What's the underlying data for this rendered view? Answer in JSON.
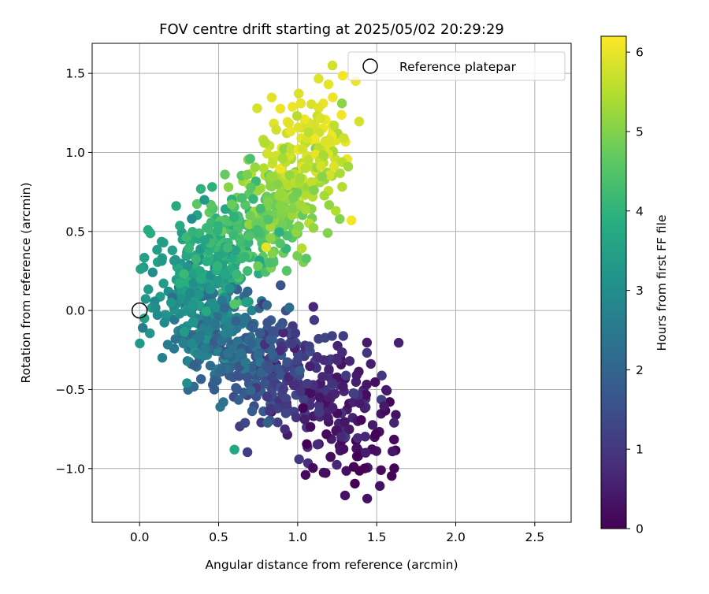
{
  "chart_data": {
    "type": "scatter",
    "title": "FOV centre drift starting at 2025/05/02 20:29:29",
    "xlabel": "Angular distance from reference (arcmin)",
    "ylabel": "Rotation from reference (arcmin)",
    "xlim": [
      -0.3,
      2.73
    ],
    "ylim": [
      -1.34,
      1.69
    ],
    "xticks": [
      0.0,
      0.5,
      1.0,
      1.5,
      2.0,
      2.5
    ],
    "xtick_labels": [
      "0.0",
      "0.5",
      "1.0",
      "1.5",
      "2.0",
      "2.5"
    ],
    "yticks": [
      -1.0,
      -0.5,
      0.0,
      0.5,
      1.0,
      1.5
    ],
    "ytick_labels": [
      "−1.0",
      "−0.5",
      "0.0",
      "0.5",
      "1.0",
      "1.5"
    ],
    "grid": true,
    "legend": {
      "placement": "top-right",
      "entries": [
        "Reference platepar"
      ]
    },
    "colormap": "viridis",
    "colorbar": {
      "label": "Hours from first FF file",
      "range": [
        0,
        6.2
      ],
      "ticks": [
        0,
        1,
        2,
        3,
        4,
        5,
        6
      ],
      "tick_labels": [
        "0",
        "1",
        "2",
        "3",
        "4",
        "5",
        "6"
      ]
    },
    "reference_point": {
      "x": 0.0,
      "y": 0.0,
      "label": "Reference platepar",
      "marker": "open-circle"
    },
    "series": [
      {
        "values": [
          {
            "x": 1.28,
            "y": 1.31,
            "c": 5.1
          },
          {
            "x": 1.22,
            "y": 1.55,
            "c": 5.8
          },
          {
            "x": 1.23,
            "y": 1.17,
            "c": 5.6
          },
          {
            "x": 1.32,
            "y": 0.91,
            "c": 5.3
          },
          {
            "x": 1.02,
            "y": 1.31,
            "c": 6.0
          },
          {
            "x": 1.34,
            "y": 0.57,
            "c": 6.1
          },
          {
            "x": 1.23,
            "y": 0.91,
            "c": 5.9
          },
          {
            "x": 0.54,
            "y": 0.86,
            "c": 4.7
          },
          {
            "x": 0.7,
            "y": 0.96,
            "c": 4.4
          },
          {
            "x": 0.41,
            "y": 0.7,
            "c": 3.3
          },
          {
            "x": 0.33,
            "y": 0.58,
            "c": 3.0
          },
          {
            "x": 1.19,
            "y": 0.49,
            "c": 5.0
          },
          {
            "x": 0.6,
            "y": -0.88,
            "c": 3.7
          },
          {
            "x": 0.51,
            "y": -0.61,
            "c": 2.4
          },
          {
            "x": 0.53,
            "y": -0.58,
            "c": 2.3
          },
          {
            "x": 0.3,
            "y": -0.46,
            "c": 3.0
          },
          {
            "x": 0.02,
            "y": -0.11,
            "c": 2.6
          },
          {
            "x": 0.6,
            "y": 0.04,
            "c": 4.5
          },
          {
            "x": 0.81,
            "y": -0.71,
            "c": 1.9
          },
          {
            "x": 0.84,
            "y": 0.36,
            "c": 5.0
          },
          {
            "x": 0.94,
            "y": 0.79,
            "c": 5.5
          },
          {
            "x": 0.8,
            "y": 0.4,
            "c": 6.0
          },
          {
            "x": 1.52,
            "y": -1.11,
            "c": 0.3
          },
          {
            "x": 1.44,
            "y": -1.19,
            "c": 0.3
          },
          {
            "x": 1.3,
            "y": -1.17,
            "c": 0.3
          },
          {
            "x": 1.05,
            "y": -1.04,
            "c": 0.2
          },
          {
            "x": 1.61,
            "y": -0.71,
            "c": 0.6
          },
          {
            "x": 1.43,
            "y": -0.9,
            "c": 0.5
          }
        ]
      }
    ]
  }
}
